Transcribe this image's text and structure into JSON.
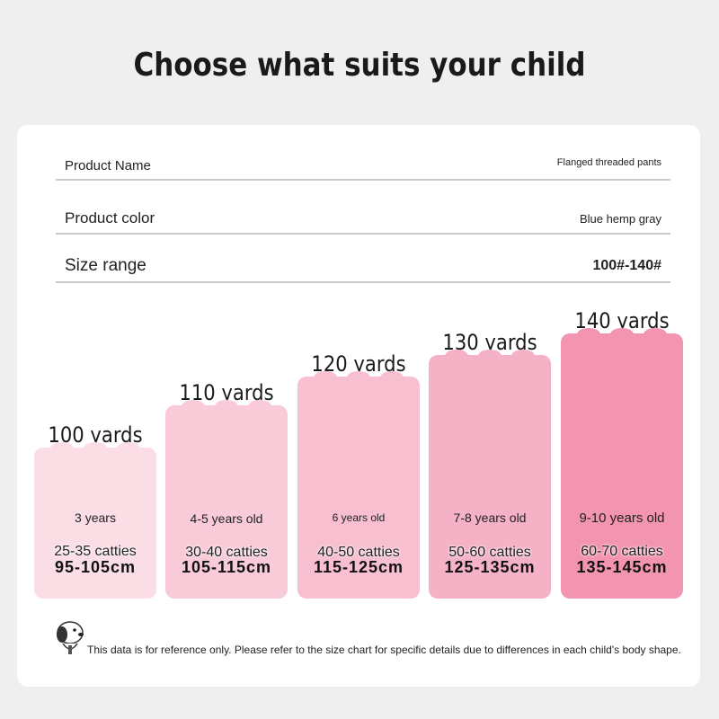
{
  "title": "Choose what suits your child",
  "specs": [
    {
      "label": "Product Name",
      "value": "Flanged threaded pants"
    },
    {
      "label": "Product color",
      "value": "Blue hemp gray"
    },
    {
      "label": "Size range",
      "value": "100#-140#"
    }
  ],
  "sizes": [
    {
      "size": "100 yards",
      "age": "3 years",
      "weight": "25-35 catties",
      "height": "95-105cm",
      "color": "#fbdde5"
    },
    {
      "size": "110 yards",
      "age": "4-5 years old",
      "weight": "30-40 catties",
      "height": "105-115cm",
      "color": "#f9cbd8"
    },
    {
      "size": "120 yards",
      "age": "6 years old",
      "weight": "40-50 catties",
      "height": "115-125cm",
      "color": "#f7bfcf"
    },
    {
      "size": "130 yards",
      "age": "7-8 years old",
      "weight": "50-60 catties",
      "height": "125-135cm",
      "color": "#f5b1c5"
    },
    {
      "size": "140 yards",
      "age": "9-10 years old",
      "weight": "60-70 catties",
      "height": "135-145cm",
      "color": "#f394b0"
    }
  ],
  "disclaimer": "This data is for reference only. Please refer to the size chart for specific details due to differences in each child's body shape.",
  "mascot_icon": "cartoon-dog-icon"
}
